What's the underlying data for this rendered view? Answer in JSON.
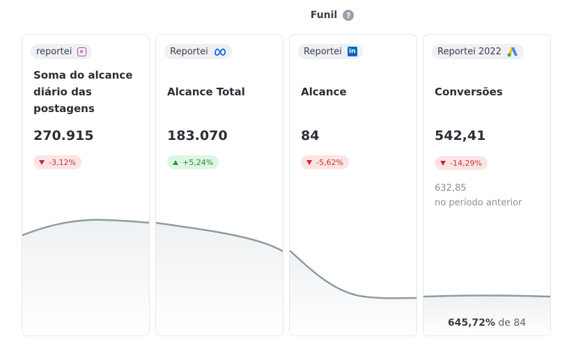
{
  "header": {
    "title": "Funil"
  },
  "cards": [
    {
      "source": "reportei",
      "icon": "instagram-icon",
      "title": "Soma do alcance diário das postagens",
      "value": "270.915",
      "change": "-3,12%",
      "trend": "down"
    },
    {
      "source": "Reportei",
      "icon": "meta-icon",
      "title": "Alcance Total",
      "value": "183.070",
      "change": "+5,24%",
      "trend": "up"
    },
    {
      "source": "Reportei",
      "icon": "linkedin-icon",
      "title": "Alcance",
      "value": "84",
      "change": "-5,62%",
      "trend": "down"
    },
    {
      "source": "Reportei 2022",
      "icon": "google-ads-icon",
      "title": "Conversões",
      "value": "542,41",
      "change": "-14,29%",
      "trend": "down",
      "previous_value": "632,85",
      "previous_label": "no período anterior",
      "footer_percent": "645,72%",
      "footer_suffix": "de 84"
    }
  ],
  "colors": {
    "curve": "#8e9aa3",
    "down": "#c73535",
    "up": "#2a8a3e"
  }
}
